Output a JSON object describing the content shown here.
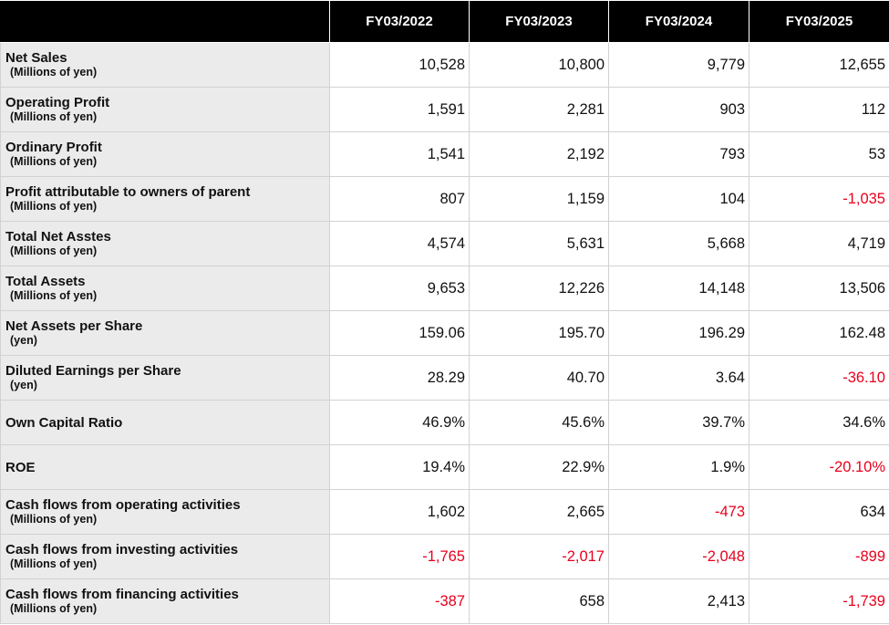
{
  "table": {
    "columns": [
      "FY03/2022",
      "FY03/2023",
      "FY03/2024",
      "FY03/2025"
    ],
    "rows": [
      {
        "label": "Net Sales",
        "unit": "(Millions of yen)",
        "values": [
          "10,528",
          "10,800",
          "9,779",
          "12,655"
        ]
      },
      {
        "label": "Operating Profit",
        "unit": "(Millions of yen)",
        "values": [
          "1,591",
          "2,281",
          "903",
          "112"
        ]
      },
      {
        "label": "Ordinary Profit",
        "unit": "(Millions of yen)",
        "values": [
          "1,541",
          "2,192",
          "793",
          "53"
        ]
      },
      {
        "label": "Profit attributable to owners of parent",
        "unit": "(Millions of yen)",
        "values": [
          "807",
          "1,159",
          "104",
          "-1,035"
        ]
      },
      {
        "label": "Total Net Asstes",
        "unit": "(Millions of yen)",
        "values": [
          "4,574",
          "5,631",
          "5,668",
          "4,719"
        ]
      },
      {
        "label": "Total Assets",
        "unit": "(Millions of yen)",
        "values": [
          "9,653",
          "12,226",
          "14,148",
          "13,506"
        ]
      },
      {
        "label": "Net Assets per Share",
        "unit": "(yen)",
        "values": [
          "159.06",
          "195.70",
          "196.29",
          "162.48"
        ]
      },
      {
        "label": "Diluted Earnings per Share",
        "unit": "(yen)",
        "values": [
          "28.29",
          "40.70",
          "3.64",
          "-36.10"
        ]
      },
      {
        "label": "Own Capital Ratio",
        "unit": "",
        "values": [
          "46.9%",
          "45.6%",
          "39.7%",
          "34.6%"
        ]
      },
      {
        "label": "ROE",
        "unit": "",
        "values": [
          "19.4%",
          "22.9%",
          "1.9%",
          "-20.10%"
        ]
      },
      {
        "label": "Cash flows from operating activities",
        "unit": "(Millions of yen)",
        "values": [
          "1,602",
          "2,665",
          "-473",
          "634"
        ]
      },
      {
        "label": "Cash flows from investing activities",
        "unit": "(Millions of yen)",
        "values": [
          "-1,765",
          "-2,017",
          "-2,048",
          "-899"
        ]
      },
      {
        "label": "Cash flows from financing activities",
        "unit": "(Millions of yen)",
        "values": [
          "-387",
          "658",
          "2,413",
          "-1,739"
        ]
      }
    ]
  },
  "colors": {
    "header_background": "#000000",
    "header_text": "#ffffff",
    "label_background": "#ebebeb",
    "negative_value": "#e8001c",
    "grid": "#d2d2d2"
  }
}
